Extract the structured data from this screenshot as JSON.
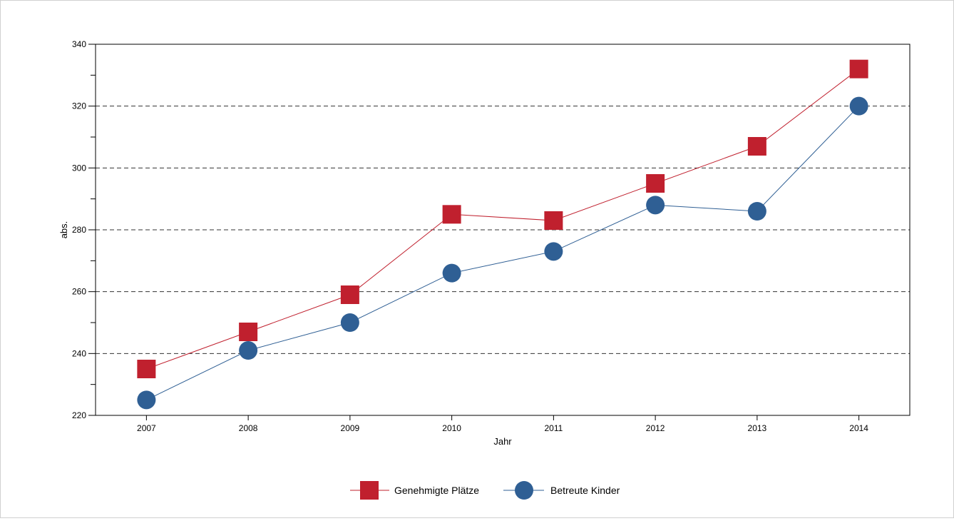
{
  "chart_data": {
    "type": "line",
    "xlabel": "Jahr",
    "ylabel": "abs.",
    "x": [
      2007,
      2008,
      2009,
      2010,
      2011,
      2012,
      2013,
      2014
    ],
    "x_tick_labels": [
      "2007",
      "2008",
      "2009",
      "2010",
      "2011",
      "2012",
      "2013",
      "2014"
    ],
    "ylim": [
      220,
      340
    ],
    "y_ticks": [
      220,
      240,
      260,
      280,
      300,
      320,
      340
    ],
    "y_tick_labels": [
      "220",
      "240",
      "260",
      "280",
      "300",
      "320",
      "340"
    ],
    "y_minor_step": 10,
    "grid": "horizontal dashed",
    "legend_position": "bottom-center",
    "series": [
      {
        "name": "Genehmigte Plätze",
        "marker": "square",
        "color": "#c0202e",
        "values": [
          235,
          247,
          259,
          285,
          283,
          295,
          307,
          332
        ]
      },
      {
        "name": "Betreute Kinder",
        "marker": "circle",
        "color": "#2f5f94",
        "values": [
          225,
          241,
          250,
          266,
          273,
          288,
          286,
          320
        ]
      }
    ]
  }
}
